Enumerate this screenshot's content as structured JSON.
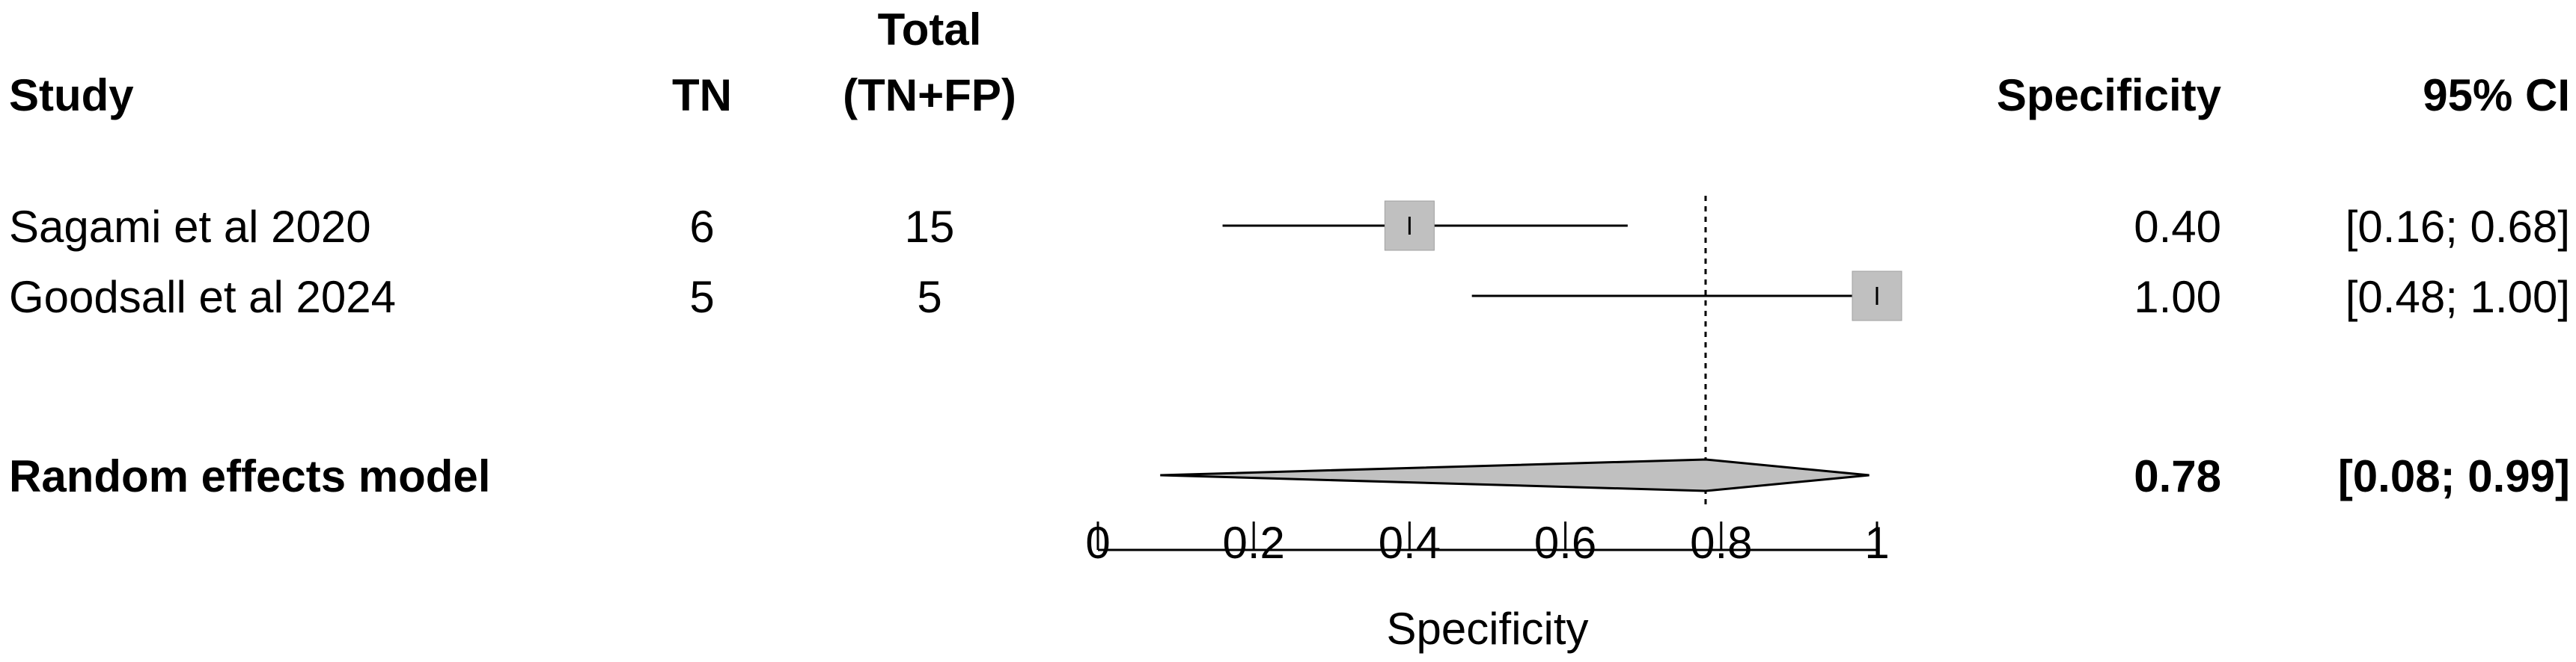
{
  "chart_data": {
    "type": "forest",
    "columns": {
      "study": "Study",
      "tn": "TN",
      "total_line1": "Total",
      "total_line2": "(TN+FP)",
      "estimate": "Specificity",
      "ci": "95% CI"
    },
    "studies": [
      {
        "name": "Sagami et al 2020",
        "tn": "6",
        "total": "15",
        "estimate": 0.4,
        "lower": 0.16,
        "upper": 0.68,
        "estimate_label": "0.40",
        "ci_label": "[0.16; 0.68]"
      },
      {
        "name": " Goodsall et al 2024",
        "tn": "5",
        "total": "5",
        "estimate": 1.0,
        "lower": 0.48,
        "upper": 1.0,
        "estimate_label": "1.00",
        "ci_label": "[0.48; 1.00]"
      }
    ],
    "pooled": {
      "name": "Random effects model",
      "estimate": 0.78,
      "lower": 0.08,
      "upper": 0.99,
      "estimate_label": "0.78",
      "ci_label": "[0.08; 0.99]"
    },
    "x_axis": {
      "label": "Specificity",
      "ticks": [
        0,
        0.2,
        0.4,
        0.6,
        0.8,
        1
      ],
      "tick_labels": [
        "0",
        "0.2",
        "0.4",
        "0.6",
        "0.8",
        "1"
      ],
      "range": [
        0,
        1
      ]
    },
    "reference_line": 0.78,
    "square_color": "#c0c0c0",
    "diamond_color": "#c0c0c0",
    "square_border_color": "#a0a0a0"
  }
}
